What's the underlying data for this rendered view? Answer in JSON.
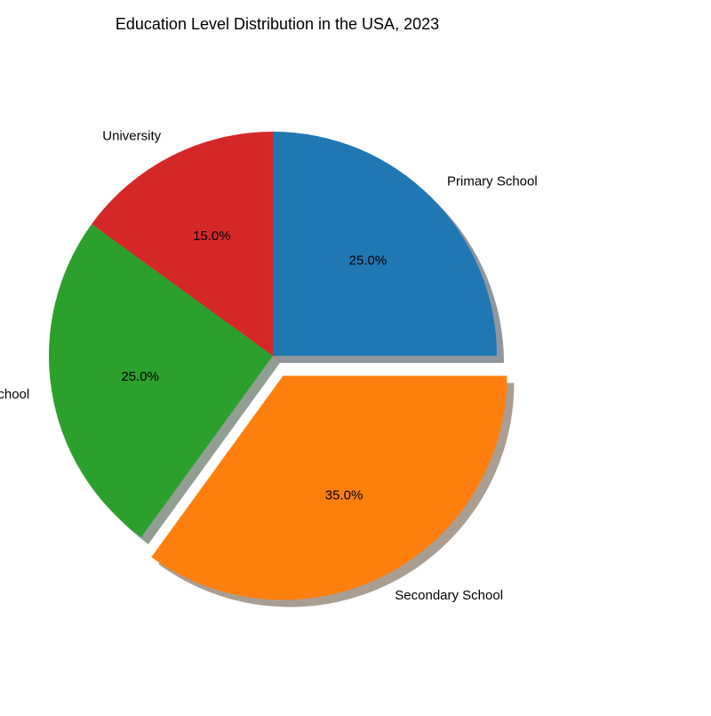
{
  "chart_data": {
    "type": "pie",
    "title": "Education Level Distribution in the USA, 2023",
    "slices": [
      {
        "label": "Primary School",
        "value": 25.0,
        "pct_label": "25.0%",
        "color": "#1f77b4",
        "explode": false
      },
      {
        "label": "Secondary School",
        "value": 35.0,
        "pct_label": "35.0%",
        "color": "#ff7f0e",
        "explode": true
      },
      {
        "label": "Tertiary/Vocational School",
        "value": 25.0,
        "pct_label": "25.0%",
        "color": "#2ca02c",
        "explode": false
      },
      {
        "label": "University",
        "value": 15.0,
        "pct_label": "15.0%",
        "color": "#d62728",
        "explode": false
      }
    ],
    "start_angle_deg": 90,
    "direction": "clockwise",
    "shadow": true,
    "legend": "none"
  }
}
